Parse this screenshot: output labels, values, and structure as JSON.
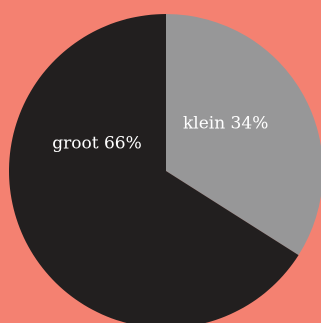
{
  "chart_data": {
    "type": "pie",
    "slices": [
      {
        "label": "klein 34%",
        "value": 34,
        "color": "#979798"
      },
      {
        "label": "groot 66%",
        "value": 66,
        "color": "#221f1f"
      }
    ]
  },
  "colors": {
    "background": "#f48171",
    "label_text": "#ffffff"
  }
}
